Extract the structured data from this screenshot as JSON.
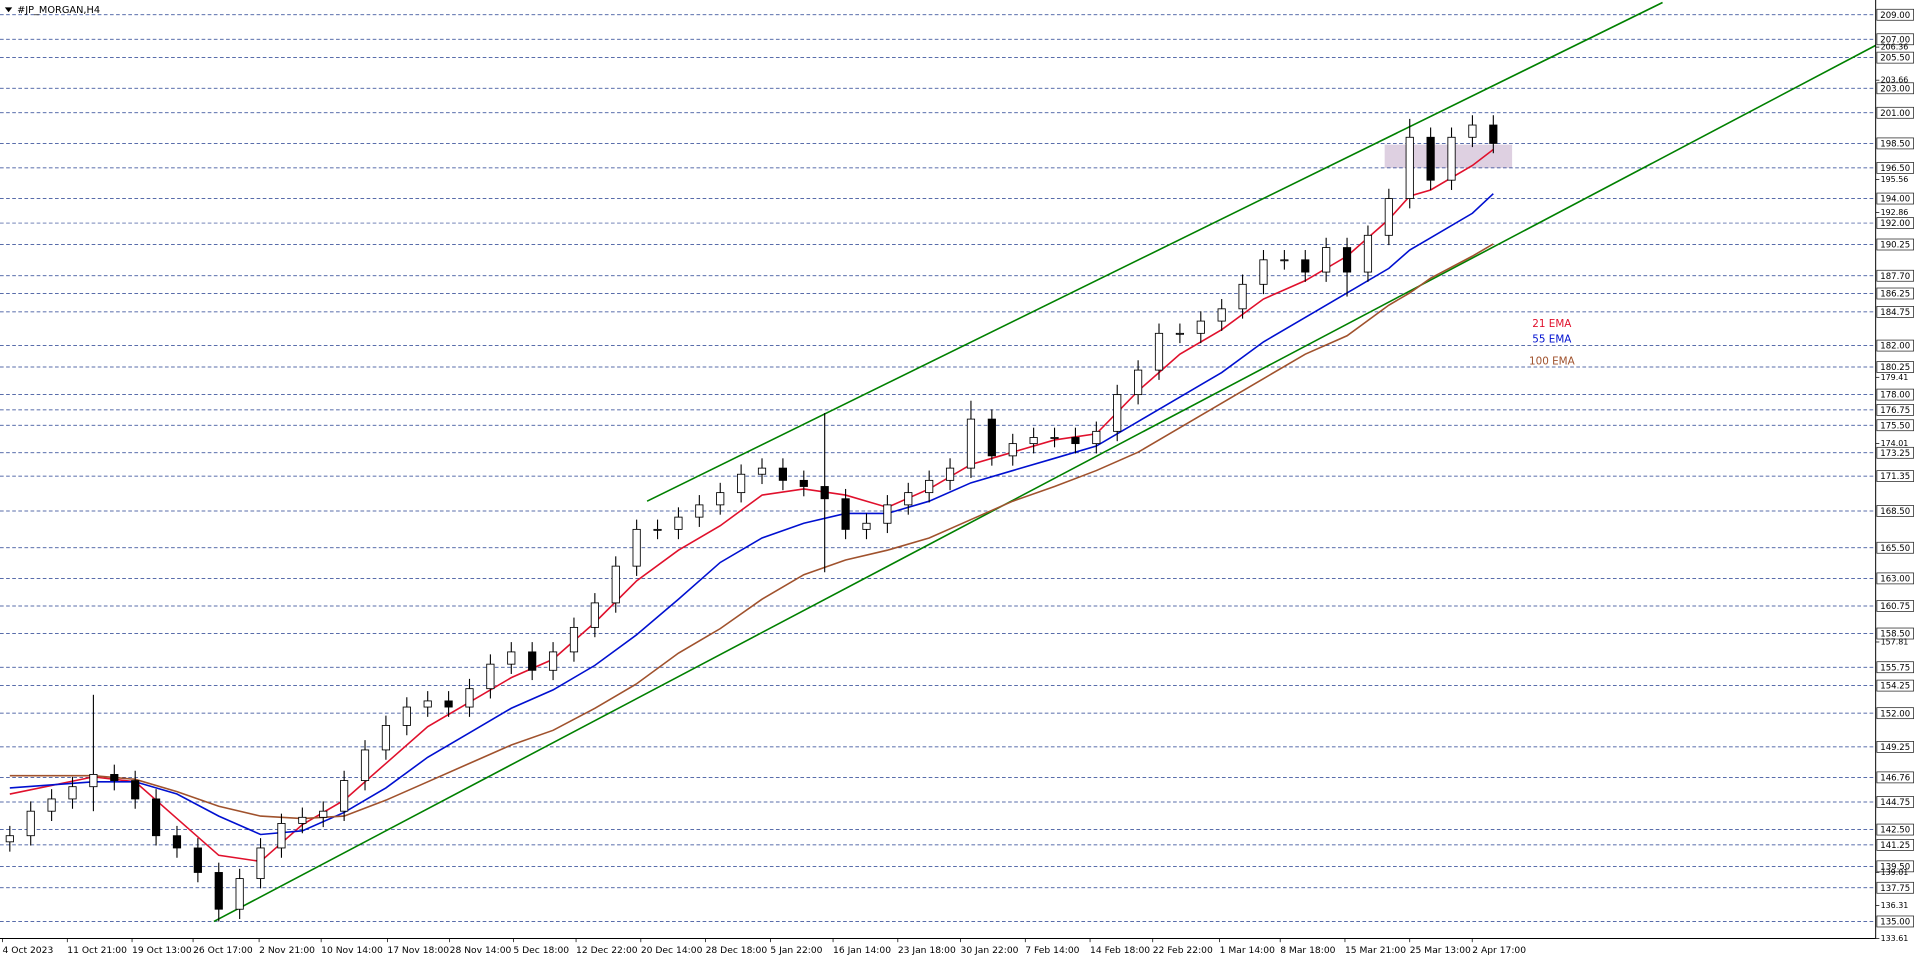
{
  "chart_data": {
    "type": "candlestick",
    "title": "#JP_MORGAN,H4",
    "open": [
      141.5,
      142,
      144,
      145,
      146,
      147,
      146.5,
      145,
      142,
      141,
      139,
      136,
      138.5,
      141,
      143,
      143.5,
      144,
      146.5,
      149,
      151,
      152.5,
      153,
      152.5,
      154,
      156,
      157,
      155.5,
      157,
      159,
      161,
      164,
      167,
      167,
      168,
      169,
      170,
      171.5,
      172,
      171,
      170.5,
      169.5,
      167,
      167.5,
      169,
      170,
      171,
      172,
      176,
      173,
      174,
      174.5,
      174.5,
      174,
      175,
      178,
      180,
      183,
      183,
      184,
      185,
      187,
      189,
      189,
      188,
      190,
      188,
      191,
      194,
      199,
      195.5,
      199,
      200
    ],
    "high": [
      142.8,
      144.8,
      145.8,
      146.8,
      153.5,
      147.8,
      147.3,
      145.8,
      142.8,
      141.8,
      139.8,
      139.3,
      141.8,
      143.8,
      144.3,
      144.8,
      147.3,
      149.8,
      151.8,
      153.3,
      153.8,
      153.8,
      154.8,
      156.8,
      157.8,
      157.8,
      157.8,
      159.8,
      161.8,
      164.8,
      167.8,
      167.8,
      168.8,
      169.8,
      170.8,
      172.3,
      172.8,
      172.8,
      171.8,
      176.5,
      170.3,
      168.3,
      169.8,
      170.8,
      171.8,
      172.8,
      177.5,
      176.8,
      174.8,
      175.3,
      175.3,
      175.3,
      175.8,
      178.8,
      180.8,
      183.8,
      183.8,
      184.8,
      185.8,
      187.8,
      189.8,
      189.8,
      189.8,
      190.8,
      190.8,
      191.8,
      194.8,
      200.5,
      199.8,
      199.8,
      200.8,
      200.8
    ],
    "low": [
      140.7,
      141.2,
      143.2,
      144.2,
      144,
      145.7,
      144.2,
      141.2,
      140.2,
      138.2,
      135,
      135.2,
      137.7,
      140.2,
      142.2,
      142.7,
      143.2,
      145.7,
      148.2,
      150.2,
      151.7,
      151.7,
      151.7,
      153.2,
      155.2,
      154.7,
      154.7,
      156.2,
      158.2,
      160.2,
      163.2,
      166.2,
      166.2,
      167.2,
      168.2,
      169.2,
      170.7,
      170.2,
      169.7,
      163.5,
      166.2,
      166.2,
      166.7,
      168.2,
      169.2,
      170.2,
      171.2,
      172.2,
      172.2,
      173.2,
      173.7,
      173.2,
      173.2,
      174.2,
      177.2,
      179.2,
      182.2,
      182.2,
      183.2,
      184.2,
      186.2,
      188.2,
      187.2,
      187.2,
      186,
      187.2,
      190.2,
      193.2,
      194.7,
      194.7,
      198.2,
      197.7
    ],
    "close": [
      142,
      144,
      145,
      146,
      147,
      146.5,
      145,
      142,
      141,
      139,
      136,
      138.5,
      141,
      143,
      143.5,
      144,
      146.5,
      149,
      151,
      152.5,
      153,
      152.5,
      154,
      156,
      157,
      155.5,
      157,
      159,
      161,
      164,
      167,
      167,
      168,
      169,
      170,
      171.5,
      172,
      171,
      170.5,
      169.5,
      167,
      167.5,
      169,
      170,
      171,
      172,
      176,
      173,
      174,
      174.5,
      174.5,
      174,
      175,
      178,
      180,
      183,
      183,
      184,
      185,
      187,
      189,
      189,
      188,
      190,
      188,
      191,
      194,
      199,
      195.5,
      199,
      200,
      198.5
    ],
    "up_color": "#ffffff",
    "down_color": "#000000",
    "series": [
      {
        "name": "21 EMA",
        "color": "#e0102c",
        "x": [
          0,
          4,
          6,
          8,
          10,
          12,
          14,
          16,
          18,
          20,
          22,
          24,
          26,
          28,
          30,
          32,
          34,
          36,
          38,
          40,
          42,
          44,
          46,
          48,
          50,
          52,
          54,
          56,
          58,
          60,
          62,
          64,
          66,
          67,
          68,
          70,
          71
        ],
        "values": [
          145.4,
          146.8,
          146.4,
          143.4,
          140.4,
          139.9,
          142.9,
          144.9,
          147.9,
          150.9,
          152.9,
          154.9,
          156.4,
          159.4,
          162.8,
          165.3,
          167.3,
          169.8,
          170.3,
          169.8,
          168.8,
          170.3,
          172.3,
          173.3,
          174.3,
          174.8,
          178.3,
          181.3,
          183.3,
          185.8,
          187.3,
          189.3,
          192.3,
          194.2,
          194.7,
          196.7,
          198
        ]
      },
      {
        "name": "55 EMA",
        "color": "#0010d0",
        "x": [
          0,
          4,
          6,
          8,
          10,
          12,
          14,
          16,
          18,
          20,
          22,
          24,
          26,
          28,
          30,
          32,
          34,
          36,
          38,
          40,
          42,
          44,
          46,
          48,
          50,
          52,
          54,
          56,
          58,
          60,
          62,
          64,
          66,
          67,
          68,
          70,
          71
        ],
        "values": [
          145.9,
          146.4,
          146.4,
          145.4,
          143.6,
          142.1,
          142.4,
          143.9,
          145.9,
          148.4,
          150.4,
          152.4,
          153.9,
          155.9,
          158.4,
          161.3,
          164.3,
          166.3,
          167.5,
          168.3,
          168.3,
          169.3,
          170.8,
          171.8,
          172.8,
          173.8,
          175.8,
          177.8,
          179.8,
          182.3,
          184.3,
          186.3,
          188.3,
          189.8,
          190.8,
          192.8,
          194.4
        ]
      },
      {
        "name": "100 EMA",
        "color": "#a0522d",
        "x": [
          0,
          4,
          6,
          8,
          10,
          12,
          14,
          16,
          18,
          20,
          22,
          24,
          26,
          28,
          30,
          32,
          34,
          36,
          38,
          40,
          42,
          44,
          46,
          48,
          50,
          52,
          54,
          56,
          58,
          60,
          62,
          64,
          66,
          67,
          68,
          70,
          71
        ],
        "values": [
          146.9,
          146.9,
          146.6,
          145.6,
          144.4,
          143.6,
          143.4,
          143.6,
          144.9,
          146.4,
          147.9,
          149.4,
          150.6,
          152.4,
          154.4,
          156.9,
          158.9,
          161.3,
          163.3,
          164.5,
          165.3,
          166.3,
          167.8,
          169.3,
          170.5,
          171.8,
          173.3,
          175.3,
          177.3,
          179.3,
          181.3,
          182.8,
          185.3,
          186.3,
          187.5,
          189.3,
          190.3
        ]
      }
    ],
    "trend_lines": [
      {
        "color": "#008000",
        "x": [
          9.77,
          89.3
        ],
        "values": [
          135,
          206.5
        ]
      },
      {
        "color": "#008000",
        "x": [
          30.5,
          79.1
        ],
        "values": [
          169.3,
          210
        ]
      }
    ],
    "zones": [
      {
        "color": "#d8c8dc",
        "x": [
          65.8,
          71.9
        ],
        "values": [
          196.5,
          198.4
        ]
      }
    ],
    "level_color": "#223d8f",
    "xlim": [
      -0.47,
      89.3
    ],
    "ylim": [
      133.61,
      210.2
    ],
    "yticks": [
      {
        "value": 209,
        "label": "209.00"
      },
      {
        "value": 207,
        "label": "207.00"
      },
      {
        "value": 205.5,
        "label": "205.50"
      },
      {
        "value": 203,
        "label": "203.00"
      },
      {
        "value": 201,
        "label": "201.00"
      },
      {
        "value": 198.5,
        "label": "198.50"
      },
      {
        "value": 196.5,
        "label": "196.50"
      },
      {
        "value": 194,
        "label": "194.00"
      },
      {
        "value": 192,
        "label": "192.00"
      },
      190.25,
      {
        "value": 187.7,
        "label": "187.70"
      },
      186.25,
      184.75,
      {
        "value": 182,
        "label": "182.00"
      },
      180.25,
      {
        "value": 178,
        "label": "178.00"
      },
      176.75,
      {
        "value": 175.5,
        "label": "175.50"
      },
      173.25,
      171.35,
      {
        "value": 168.5,
        "label": "168.50"
      },
      {
        "value": 165.5,
        "label": "165.50"
      },
      {
        "value": 163,
        "label": "163.00"
      },
      160.75,
      {
        "value": 158.5,
        "label": "158.50"
      },
      155.75,
      154.25,
      {
        "value": 152,
        "label": "152.00"
      },
      149.25,
      146.76,
      144.75,
      {
        "value": 142.5,
        "label": "142.50"
      },
      141.25,
      {
        "value": 139.5,
        "label": "139.50"
      },
      137.75,
      {
        "value": 135,
        "label": "135.00"
      }
    ],
    "yticks_minor": [
      206.36,
      203.66,
      195.56,
      192.86,
      179.41,
      174.01,
      157.81,
      139.01,
      136.31,
      133.61
    ],
    "xticks": [
      {
        "value": -0.35,
        "label": "4 Oct 2023"
      },
      {
        "value": 2.75,
        "label": "11 Oct 21:00"
      },
      {
        "value": 5.85,
        "label": "19 Oct 13:00"
      },
      {
        "value": 8.77,
        "label": "26 Oct 17:00"
      },
      {
        "value": 11.93,
        "label": "2 Nov 21:00"
      },
      {
        "value": 14.9,
        "label": "10 Nov 14:00"
      },
      {
        "value": 18.07,
        "label": "17 Nov 18:00"
      },
      {
        "value": 21.05,
        "label": "28 Nov 14:00"
      },
      {
        "value": 24.1,
        "label": "5 Dec 18:00"
      },
      {
        "value": 27.1,
        "label": "12 Dec 22:00"
      },
      {
        "value": 30.2,
        "label": "20 Dec 14:00"
      },
      {
        "value": 33.3,
        "label": "28 Dec 18:00"
      },
      {
        "value": 36.4,
        "label": "5 Jan 22:00"
      },
      {
        "value": 39.4,
        "label": "16 Jan 14:00"
      },
      {
        "value": 42.5,
        "label": "23 Jan 18:00"
      },
      {
        "value": 45.5,
        "label": "30 Jan 22:00"
      },
      {
        "value": 48.6,
        "label": "7 Feb 14:00"
      },
      {
        "value": 51.7,
        "label": "14 Feb 18:00"
      },
      {
        "value": 54.7,
        "label": "22 Feb 22:00"
      },
      {
        "value": 57.9,
        "label": "1 Mar 14:00"
      },
      {
        "value": 60.8,
        "label": "8 Mar 18:00"
      },
      {
        "value": 63.9,
        "label": "15 Mar 21:00"
      },
      {
        "value": 67,
        "label": "25 Mar 13:00"
      },
      {
        "value": 69.99,
        "label": "2 Apr 17:00"
      }
    ]
  }
}
